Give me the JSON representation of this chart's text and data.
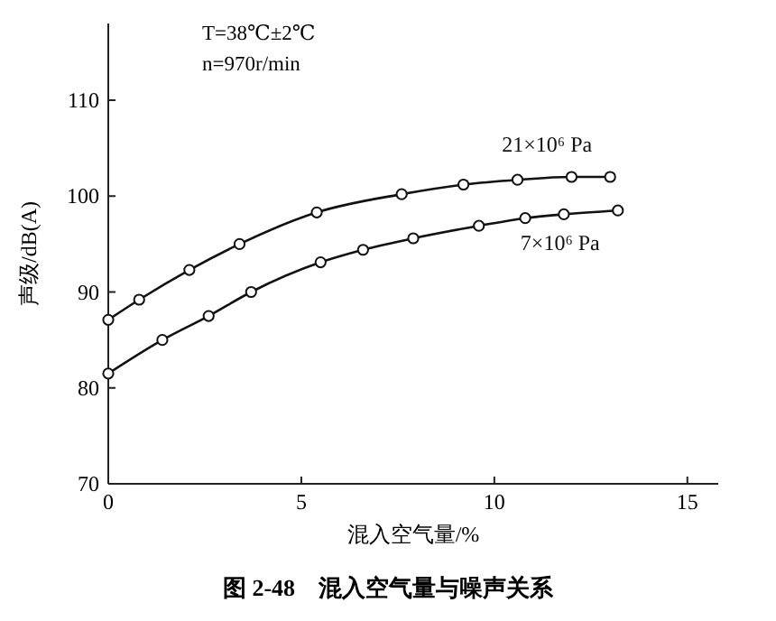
{
  "chart_data": {
    "type": "line",
    "title": "图 2-48　混入空气量与噪声关系",
    "xlabel": "混入空气量/%",
    "ylabel": "声级/dB(A)",
    "annotations": [
      "T=38℃±2℃",
      "n=970r/min"
    ],
    "xlim": [
      0,
      15.8
    ],
    "xticks": [
      0,
      5,
      10,
      15
    ],
    "ylim": [
      70,
      118
    ],
    "yticks": [
      70,
      80,
      90,
      100,
      110
    ],
    "grid": false,
    "marker": "circle",
    "line_style": "solid",
    "series": [
      {
        "name": "21×10⁶ Pa",
        "color": "#111111",
        "x": [
          0,
          0.8,
          2.1,
          3.4,
          5.4,
          7.6,
          9.2,
          10.6,
          12.0,
          13.0
        ],
        "values": [
          87.1,
          89.2,
          92.3,
          95,
          98.3,
          100.2,
          101.2,
          101.7,
          102,
          102
        ]
      },
      {
        "name": "7×10⁶ Pa",
        "color": "#111111",
        "x": [
          0,
          1.4,
          2.6,
          3.7,
          5.5,
          6.6,
          7.9,
          9.6,
          10.8,
          11.8,
          13.2
        ],
        "values": [
          81.5,
          85,
          87.5,
          90,
          93.1,
          94.4,
          95.6,
          96.9,
          97.7,
          98.1,
          98.5
        ]
      }
    ]
  }
}
